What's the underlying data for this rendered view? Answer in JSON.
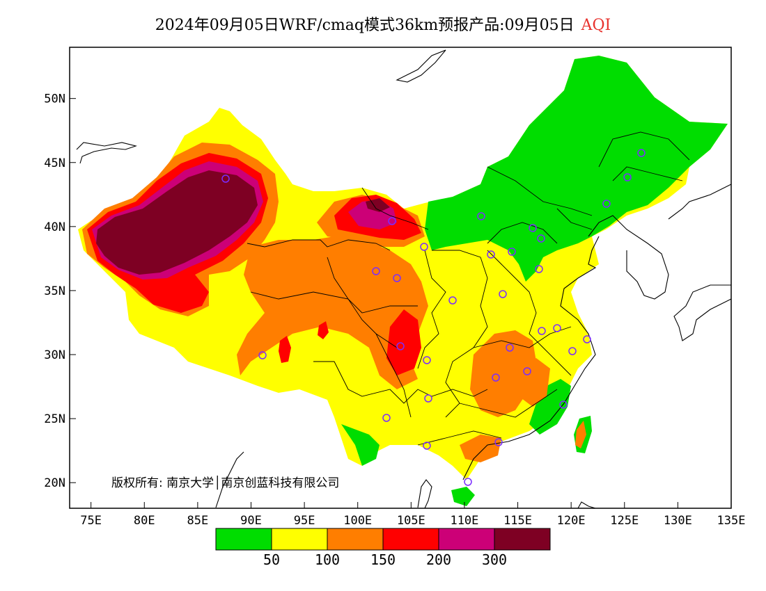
{
  "title": {
    "prefix": "2024年09月05日WRF/cmaq模式36km预报产品:09月05日",
    "variable": "AQI",
    "variable_color": "#e8322d"
  },
  "copyright": "版权所有: 南京大学│南京创蓝科技有限公司",
  "axes": {
    "x_ticks": [
      "75E",
      "80E",
      "85E",
      "90E",
      "95E",
      "100E",
      "105E",
      "110E",
      "115E",
      "120E",
      "125E",
      "130E",
      "135E"
    ],
    "y_ticks": [
      "20N",
      "25N",
      "30N",
      "35N",
      "40N",
      "45N",
      "50N"
    ]
  },
  "legend": {
    "colors": [
      "#00dd00",
      "#ffff00",
      "#ff7e00",
      "#ff0000",
      "#cc0077",
      "#7e0023"
    ],
    "labels": [
      "50",
      "100",
      "150",
      "200",
      "300"
    ]
  },
  "map": {
    "bg_land_color": "#ffffff",
    "station_marker_color": "#7b2cff"
  }
}
